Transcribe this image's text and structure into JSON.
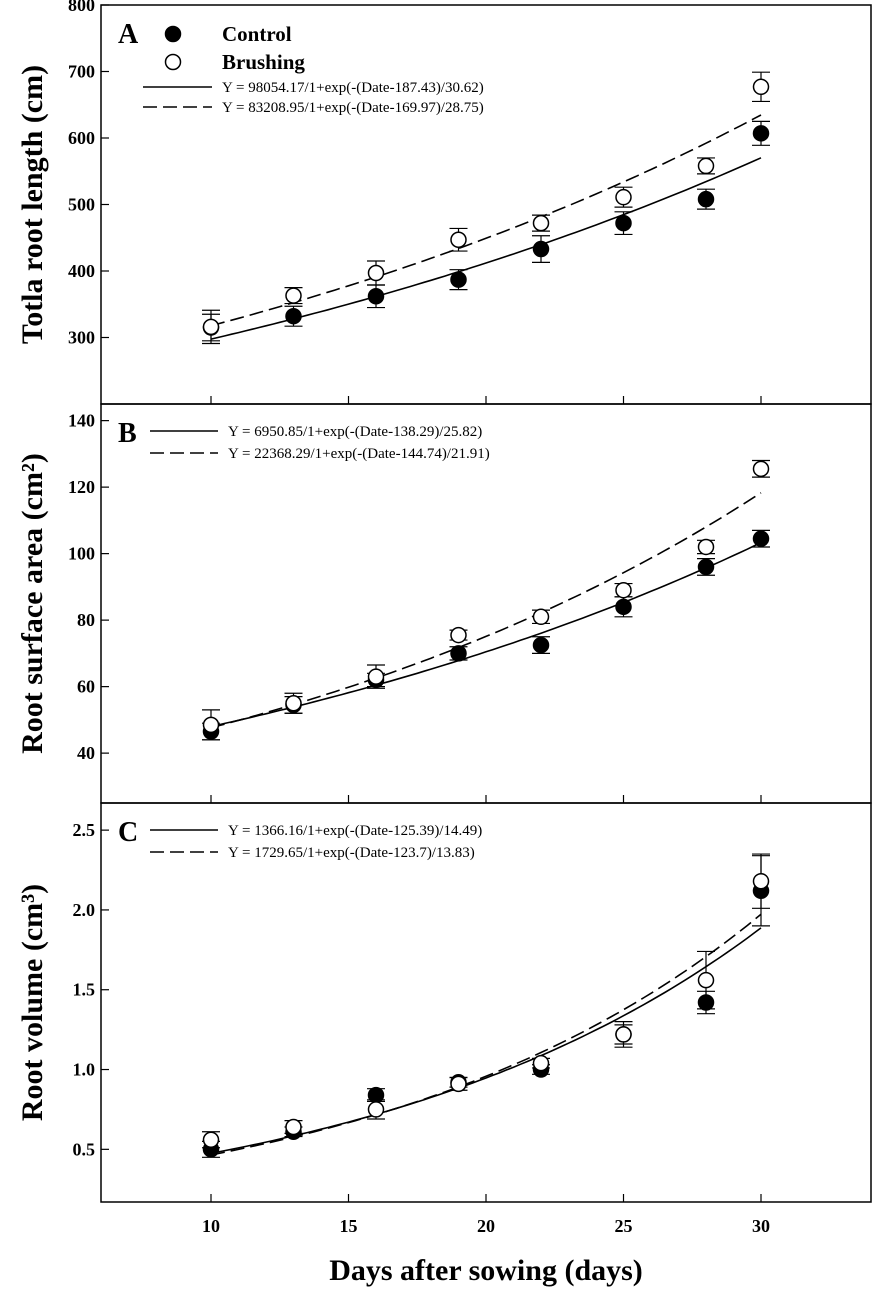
{
  "figure": {
    "xlabel": "Days after sowing (days)",
    "xlim": [
      6,
      34
    ],
    "xticks": [
      10,
      15,
      20,
      25,
      30
    ]
  },
  "legend": {
    "series": [
      {
        "name": "Control",
        "marker": "filled-circle"
      },
      {
        "name": "Brushing",
        "marker": "open-circle"
      }
    ]
  },
  "chart_data": [
    {
      "type": "scatter",
      "panel": "A",
      "ylabel": "Totla root length (cm)",
      "ylim": [
        200,
        800
      ],
      "yticks": [
        300,
        400,
        500,
        600,
        700,
        800
      ],
      "x": [
        10,
        13,
        16,
        19,
        22,
        25,
        28,
        30
      ],
      "series": [
        {
          "name": "Control",
          "values": [
            315,
            332,
            362,
            387,
            433,
            472,
            508,
            607
          ],
          "errors": [
            20,
            15,
            17,
            15,
            20,
            17,
            15,
            18
          ]
        },
        {
          "name": "Brushing",
          "values": [
            316,
            363,
            397,
            447,
            472,
            511,
            558,
            677
          ],
          "errors": [
            25,
            12,
            18,
            17,
            12,
            15,
            12,
            22
          ]
        }
      ],
      "fits": [
        {
          "series": "Control",
          "line": "solid",
          "a": 98054.17,
          "x0": 187.43,
          "b": 30.62,
          "label": "Y = 98054.17/1+exp(-(Date-187.43)/30.62)"
        },
        {
          "series": "Brushing",
          "line": "dashed",
          "a": 83208.95,
          "x0": 169.97,
          "b": 28.75,
          "label": "Y = 83208.95/1+exp(-(Date-169.97)/28.75)"
        }
      ]
    },
    {
      "type": "scatter",
      "panel": "B",
      "ylabel": "Root surface area (cm²)",
      "ylim": [
        25,
        145
      ],
      "yticks": [
        40,
        60,
        80,
        100,
        120,
        140
      ],
      "x": [
        10,
        13,
        16,
        19,
        22,
        25,
        28,
        30
      ],
      "series": [
        {
          "name": "Control",
          "values": [
            46.5,
            54.5,
            62,
            70,
            72.5,
            84,
            96,
            104.5
          ],
          "errors": [
            2.5,
            2.5,
            2,
            2,
            2.5,
            3,
            2.5,
            2.5
          ]
        },
        {
          "name": "Brushing",
          "values": [
            48.5,
            55,
            63,
            75.5,
            81,
            89,
            102,
            125.5
          ],
          "errors": [
            4.5,
            3,
            3.5,
            1.5,
            2,
            2,
            2,
            2.5
          ]
        }
      ],
      "fits": [
        {
          "series": "Control",
          "line": "solid",
          "a": 6950.85,
          "x0": 138.29,
          "b": 25.82,
          "label": "Y = 6950.85/1+exp(-(Date-138.29)/25.82)"
        },
        {
          "series": "Brushing",
          "line": "dashed",
          "a": 22368.29,
          "x0": 144.74,
          "b": 21.91,
          "label": "Y = 22368.29/1+exp(-(Date-144.74)/21.91)"
        }
      ]
    },
    {
      "type": "scatter",
      "panel": "C",
      "ylabel": "Root volume (cm³)",
      "ylim": [
        0.17,
        2.67
      ],
      "yticks": [
        0.5,
        1.0,
        1.5,
        2.0,
        2.5
      ],
      "ytick_labels": [
        "0.5",
        "1.0",
        "1.5",
        "2.0",
        "2.5"
      ],
      "x": [
        10,
        13,
        16,
        19,
        22,
        25,
        28,
        30
      ],
      "series": [
        {
          "name": "Control",
          "values": [
            0.5,
            0.61,
            0.84,
            0.92,
            1.0,
            1.22,
            1.42,
            2.12
          ],
          "errors": [
            0.05,
            0.03,
            0.04,
            0.03,
            0.03,
            0.06,
            0.07,
            0.22
          ]
        },
        {
          "name": "Brushing",
          "values": [
            0.56,
            0.64,
            0.75,
            0.91,
            1.04,
            1.22,
            1.56,
            2.18
          ],
          "errors": [
            0.05,
            0.04,
            0.06,
            0.04,
            0.03,
            0.08,
            0.18,
            0.17
          ]
        }
      ],
      "fits": [
        {
          "series": "Control",
          "line": "solid",
          "a": 1366.16,
          "x0": 125.39,
          "b": 14.49,
          "label": "Y = 1366.16/1+exp(-(Date-125.39)/14.49)"
        },
        {
          "series": "Brushing",
          "line": "dashed",
          "a": 1729.65,
          "x0": 123.7,
          "b": 13.83,
          "label": "Y = 1729.65/1+exp(-(Date-123.7)/13.83)"
        }
      ]
    }
  ]
}
